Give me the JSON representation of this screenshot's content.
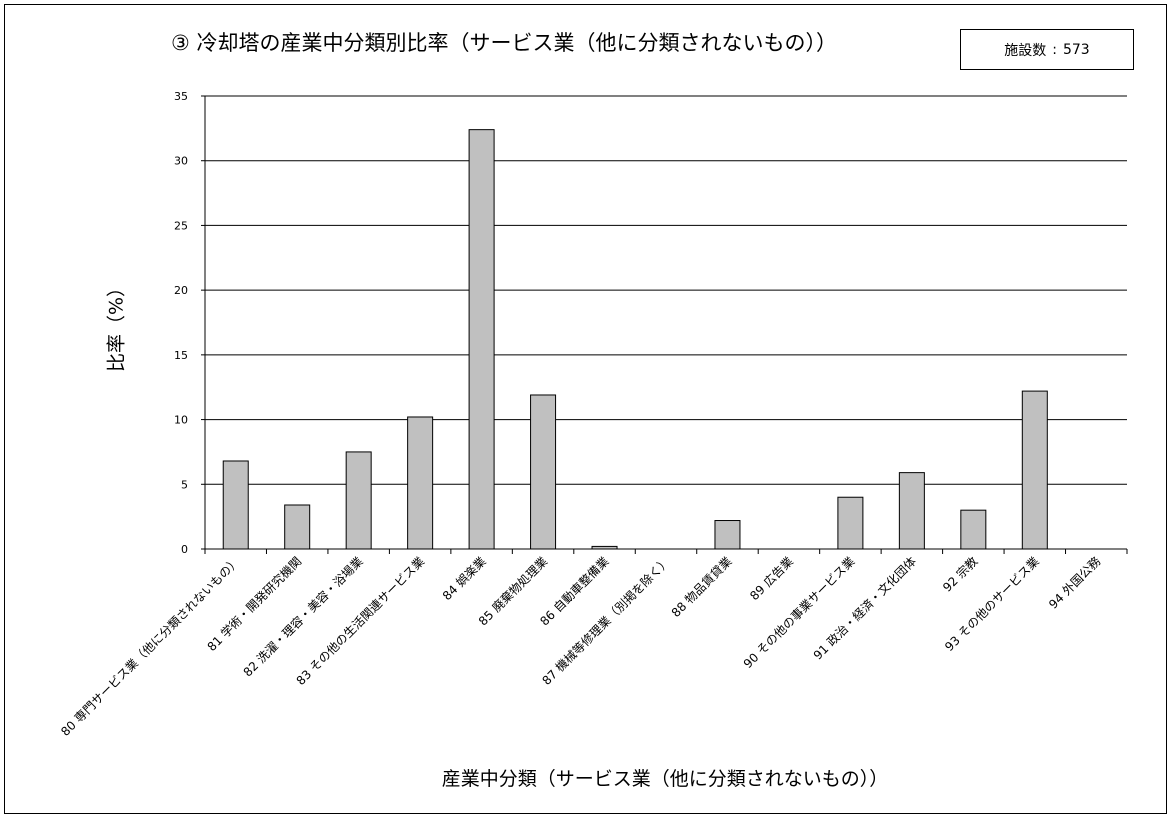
{
  "chart_data": {
    "type": "bar",
    "title": "③ 冷却塔の産業中分類別比率（サービス業（他に分類されないもの））",
    "facility_label": "施設数",
    "facility_sep": ":",
    "facility_count": "573",
    "xlabel": "産業中分類（サービス業（他に分類されないもの））",
    "ylabel": "比率（%）",
    "ylim": [
      0,
      35
    ],
    "yticks": [
      "0",
      "5",
      "10",
      "15",
      "20",
      "25",
      "30",
      "35"
    ],
    "grid": true,
    "categories": [
      "80 専門サービス業（他に分類されないもの）",
      "81 学術・開発研究機関",
      "82 洗濯・理容・美容・浴場業",
      "83 その他の生活関連サービス業",
      "84 娯楽業",
      "85 廃棄物処理業",
      "86 自動車整備業",
      "87 機械等修理業（別掲を除く）",
      "88 物品賃貸業",
      "89 広告業",
      "90 その他の事業サービス業",
      "91 政治・経済・文化団体",
      "92 宗教",
      "93 その他のサービス業",
      "94 外国公務"
    ],
    "values": [
      6.8,
      3.4,
      7.5,
      10.2,
      32.4,
      11.9,
      0.2,
      0.0,
      2.2,
      0.0,
      4.0,
      5.9,
      3.0,
      12.2,
      0.0
    ],
    "bar_color": "#c0c0c0"
  }
}
